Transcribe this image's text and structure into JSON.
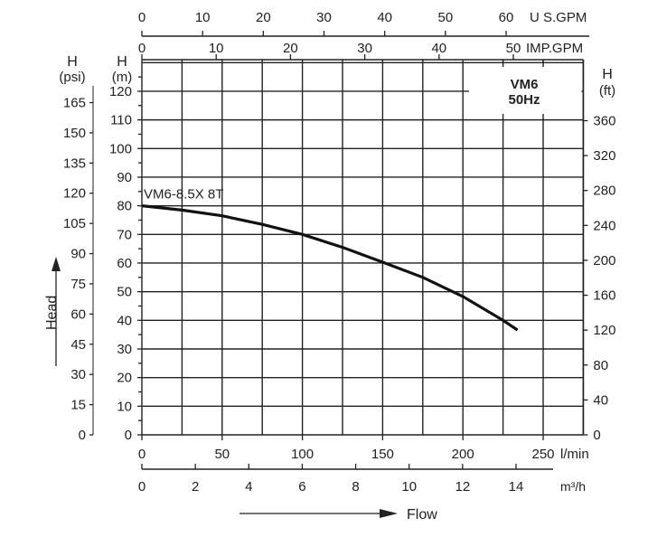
{
  "chart_data": {
    "type": "line",
    "title": "VM6",
    "subtitle": "50Hz",
    "series": [
      {
        "name": "VM6-8.5X 8T",
        "x": [
          0,
          25,
          50,
          75,
          100,
          125,
          150,
          175,
          200,
          225,
          234
        ],
        "y": [
          80,
          78.5,
          76.5,
          73.5,
          70,
          65.5,
          60.3,
          55,
          48.3,
          40,
          36.6
        ]
      }
    ],
    "xlabel": "Flow",
    "ylabel": "Head",
    "x_axis": {
      "unit": "l/min",
      "range": [
        0,
        275
      ],
      "ticks": [
        0,
        50,
        100,
        150,
        200,
        250
      ],
      "grid_step": 25
    },
    "y_axis": {
      "unit_title": "H",
      "unit": "(m)",
      "range": [
        0,
        131
      ],
      "ticks": [
        0,
        10,
        20,
        30,
        40,
        50,
        60,
        70,
        80,
        90,
        100,
        110,
        120
      ],
      "grid_step": 10
    },
    "psi_axis": {
      "unit_title": "H",
      "unit": "(psi)",
      "ticks": [
        0,
        15,
        30,
        45,
        60,
        75,
        90,
        105,
        120,
        135,
        150,
        165
      ]
    },
    "ft_axis": {
      "unit_title": "H",
      "unit": "(ft)",
      "ticks": [
        0,
        40,
        80,
        120,
        160,
        200,
        240,
        280,
        320,
        360
      ]
    },
    "m3h_axis": {
      "unit": "m³/h",
      "ticks": [
        0,
        2,
        4,
        6,
        8,
        10,
        12,
        14
      ]
    },
    "usgpm_axis": {
      "unit": "U S.GPM",
      "ticks": [
        0,
        10,
        20,
        30,
        40,
        50,
        60
      ]
    },
    "impgpm_axis": {
      "unit": "IMP.GPM",
      "ticks": [
        0,
        10,
        20,
        30,
        40,
        50
      ]
    },
    "grid": true
  }
}
